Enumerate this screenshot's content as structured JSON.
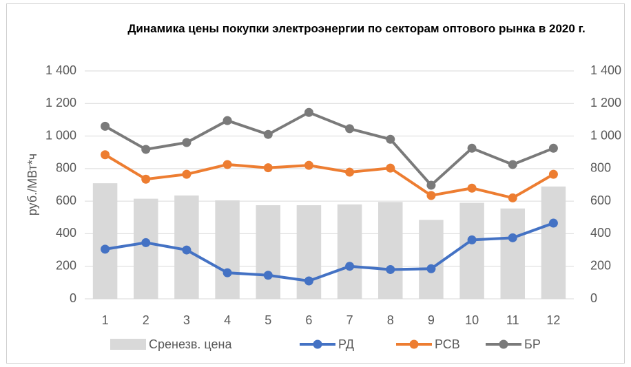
{
  "chart_data": {
    "type": "bar",
    "title": "Динамика цены покупки электроэнергии по секторам оптового рынка в 2020 г.",
    "y_label": "руб./МВт*ч",
    "categories": [
      "1",
      "2",
      "3",
      "4",
      "5",
      "6",
      "7",
      "8",
      "9",
      "10",
      "11",
      "12"
    ],
    "series": [
      {
        "name": "Сренезв. цена",
        "type": "bar",
        "color": "#d9d9d9",
        "values": [
          710,
          615,
          635,
          605,
          575,
          575,
          580,
          595,
          485,
          590,
          555,
          690
        ]
      },
      {
        "name": "РД",
        "type": "line",
        "color": "#4472c4",
        "values": [
          305,
          345,
          300,
          160,
          145,
          110,
          200,
          180,
          185,
          362,
          375,
          465
        ]
      },
      {
        "name": "РСВ",
        "type": "line",
        "color": "#ed7d31",
        "values": [
          885,
          735,
          765,
          825,
          805,
          820,
          778,
          803,
          635,
          680,
          620,
          765
        ]
      },
      {
        "name": "БР",
        "type": "line",
        "color": "#7a7a7a",
        "values": [
          1060,
          918,
          960,
          1095,
          1010,
          1145,
          1045,
          980,
          698,
          925,
          825,
          925
        ]
      }
    ],
    "ylim": [
      0,
      1400
    ],
    "yticks": [
      0,
      200,
      400,
      600,
      800,
      {
        "value": 1000,
        "label": "1 000"
      },
      {
        "value": 1200,
        "label": "1 200"
      },
      {
        "value": 1400,
        "label": "1 400"
      }
    ],
    "y2lim": [
      0,
      1400
    ],
    "y2ticks": [
      0,
      200,
      400,
      600,
      800,
      {
        "value": 1000,
        "label": "1 000"
      },
      {
        "value": 1200,
        "label": "1 200"
      },
      {
        "value": 1400,
        "label": "1 400"
      }
    ],
    "grid": true,
    "legend": "bottom"
  }
}
